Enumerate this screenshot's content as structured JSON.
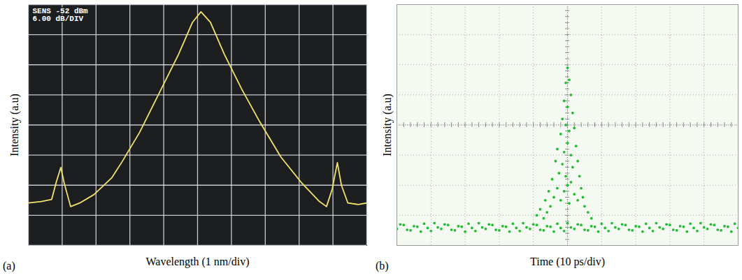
{
  "chart_data": [
    {
      "type": "line",
      "panel_label": "(a)",
      "x_label": "Wavelength (1 nm/div)",
      "y_label": "Intensity (a.u)",
      "annotations": [
        "SENS -52 dBm",
        "6.00 dB/DIV"
      ],
      "x": [
        0,
        0.38,
        0.69,
        0.83,
        0.96,
        1.06,
        1.25,
        1.52,
        1.94,
        2.46,
        2.77,
        3.29,
        3.92,
        4.44,
        4.85,
        5.1,
        5.38,
        5.79,
        6.31,
        6.83,
        7.46,
        8.08,
        8.6,
        8.81,
        8.98,
        9.13,
        9.25,
        9.44,
        9.75,
        10
      ],
      "values": [
        1.41,
        1.46,
        1.53,
        2.12,
        2.59,
        2.07,
        1.29,
        1.41,
        1.69,
        2.24,
        2.78,
        3.76,
        5.18,
        6.35,
        7.41,
        7.76,
        7.41,
        6.35,
        5.18,
        4.12,
        2.94,
        2.07,
        1.46,
        1.29,
        1.88,
        2.75,
        2.0,
        1.41,
        1.36,
        1.41
      ],
      "color": "#f2e46a",
      "xlim": [
        0,
        10
      ],
      "xticks": [
        0,
        1,
        2,
        3,
        4,
        5,
        6,
        7,
        8,
        9,
        10
      ],
      "ylim": [
        0,
        8
      ],
      "yticks": [
        0,
        1,
        2,
        3,
        4,
        5,
        6,
        7,
        8
      ],
      "grid": true,
      "tick_labels": false
    },
    {
      "type": "scatter",
      "panel_label": "(b)",
      "x_label": "Time (10 ps/div)",
      "y_label": "Intensity (a.u)",
      "x": [
        0,
        1,
        2,
        3,
        4,
        5,
        6,
        7,
        8,
        9,
        10,
        11,
        12,
        13,
        14,
        15,
        16,
        17,
        18,
        19,
        20,
        21,
        22,
        23,
        24,
        25,
        26,
        27,
        28,
        29,
        30,
        31,
        32,
        33,
        34,
        35,
        36,
        37,
        38,
        39,
        40,
        41,
        42,
        43,
        44,
        45,
        46,
        47,
        48,
        49,
        50,
        51,
        52,
        53,
        54,
        55,
        56,
        57,
        58,
        59,
        60,
        61,
        62,
        63,
        64,
        65,
        66,
        67,
        68,
        69,
        70,
        71,
        72,
        73,
        74,
        75,
        76,
        77,
        78,
        79,
        80,
        81,
        82,
        83,
        84,
        85,
        86,
        87,
        88,
        89,
        90,
        91,
        92,
        93,
        94,
        95,
        96,
        97,
        98,
        99,
        100,
        41,
        42,
        43,
        43.5,
        44,
        44.5,
        45,
        45.5,
        46,
        46.5,
        47,
        47,
        47.5,
        48,
        48,
        48.5,
        48.5,
        49,
        49,
        49,
        49.5,
        49.5,
        49.5,
        50,
        50,
        50,
        50,
        50.5,
        50.5,
        50.5,
        51,
        51,
        51,
        51.5,
        51.5,
        52,
        52,
        52.5,
        53,
        53,
        53.5,
        54,
        54.5,
        55,
        56,
        57
      ],
      "values": [
        0.55,
        0.7,
        0.68,
        0.52,
        0.5,
        0.64,
        0.62,
        0.46,
        0.72,
        0.58,
        0.48,
        0.74,
        0.6,
        0.55,
        0.7,
        0.68,
        0.52,
        0.5,
        0.64,
        0.62,
        0.46,
        0.72,
        0.58,
        0.48,
        0.74,
        0.6,
        0.55,
        0.7,
        0.68,
        0.52,
        0.5,
        0.64,
        0.62,
        0.46,
        0.72,
        0.58,
        0.48,
        0.74,
        0.6,
        0.55,
        0.7,
        0.68,
        0.52,
        0.5,
        0.64,
        0.62,
        0.46,
        0.72,
        0.58,
        0.48,
        0.74,
        0.6,
        0.55,
        0.7,
        0.68,
        0.52,
        0.5,
        0.64,
        0.62,
        0.46,
        0.72,
        0.58,
        0.48,
        0.74,
        0.6,
        0.55,
        0.7,
        0.68,
        0.52,
        0.5,
        0.64,
        0.62,
        0.46,
        0.72,
        0.58,
        0.48,
        0.74,
        0.6,
        0.55,
        0.7,
        0.68,
        0.52,
        0.5,
        0.64,
        0.62,
        0.46,
        0.72,
        0.58,
        0.48,
        0.74,
        0.6,
        0.55,
        0.7,
        0.68,
        0.52,
        0.5,
        0.64,
        0.62,
        0.46,
        0.72,
        0.58,
        1.0,
        1.2,
        0.9,
        1.5,
        1.1,
        1.8,
        1.3,
        2.2,
        1.6,
        2.8,
        1.9,
        3.2,
        2.4,
        3.7,
        1.5,
        4.2,
        2.7,
        4.8,
        3.1,
        1.8,
        5.4,
        4.0,
        2.3,
        5.9,
        4.6,
        3.4,
        2.0,
        5.5,
        3.8,
        1.4,
        5.0,
        3.0,
        2.1,
        4.4,
        2.6,
        3.9,
        1.7,
        3.3,
        2.8,
        1.5,
        2.3,
        1.9,
        1.6,
        1.3,
        1.1,
        0.9
      ],
      "color": "#22bb33",
      "marker": "dot",
      "xlim": [
        0,
        100
      ],
      "xticks": [
        0,
        10,
        20,
        30,
        40,
        50,
        60,
        70,
        80,
        90,
        100
      ],
      "ylim": [
        0,
        8
      ],
      "yticks": [
        0,
        1,
        2,
        3,
        4,
        5,
        6,
        7,
        8
      ],
      "grid": true,
      "tick_labels": false
    }
  ]
}
